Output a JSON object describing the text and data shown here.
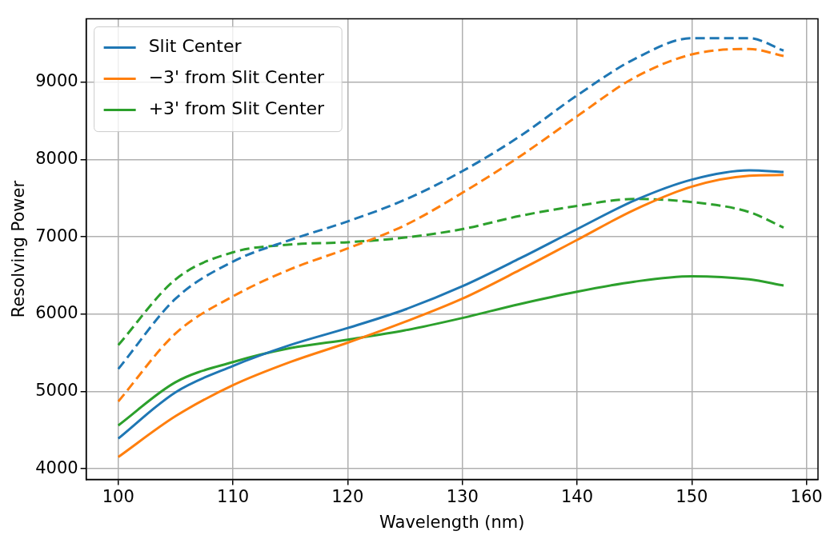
{
  "chart_data": {
    "type": "line",
    "xlabel": "Wavelength (nm)",
    "ylabel": "Resolving Power",
    "x": [
      100,
      105,
      110,
      115,
      120,
      125,
      130,
      135,
      140,
      145,
      150,
      155,
      158
    ],
    "series": [
      {
        "name": "Slit Center",
        "color": "#1f77b4",
        "line_style": "solid",
        "values": [
          4390,
          4990,
          5330,
          5600,
          5820,
          6060,
          6360,
          6720,
          7100,
          7470,
          7740,
          7860,
          7840
        ]
      },
      {
        "name": "−3' from Slit Center",
        "color": "#ff7f0e",
        "line_style": "solid",
        "values": [
          4150,
          4680,
          5080,
          5380,
          5630,
          5900,
          6200,
          6570,
          6960,
          7350,
          7650,
          7790,
          7800
        ]
      },
      {
        "name": "+3' from Slit Center",
        "color": "#2ca02c",
        "line_style": "solid",
        "values": [
          4560,
          5120,
          5380,
          5560,
          5670,
          5790,
          5950,
          6130,
          6290,
          6420,
          6490,
          6450,
          6370
        ]
      },
      {
        "color": "#1f77b4",
        "line_style": "dashed",
        "values": [
          5290,
          6200,
          6680,
          6960,
          7200,
          7480,
          7850,
          8300,
          8830,
          9300,
          9570,
          9570,
          9410
        ]
      },
      {
        "color": "#ff7f0e",
        "line_style": "dashed",
        "values": [
          4870,
          5750,
          6230,
          6580,
          6850,
          7150,
          7570,
          8040,
          8560,
          9060,
          9360,
          9430,
          9340
        ]
      },
      {
        "color": "#2ca02c",
        "line_style": "dashed",
        "values": [
          5600,
          6450,
          6800,
          6900,
          6930,
          6990,
          7100,
          7270,
          7400,
          7490,
          7450,
          7320,
          7120
        ]
      }
    ],
    "xlim": [
      97.2,
      161
    ],
    "xticks": [
      100,
      110,
      120,
      130,
      140,
      150,
      160
    ],
    "ylim": [
      3860,
      9820
    ],
    "yticks": [
      4000,
      5000,
      6000,
      7000,
      8000,
      9000
    ],
    "grid": true,
    "legend": "top left"
  }
}
